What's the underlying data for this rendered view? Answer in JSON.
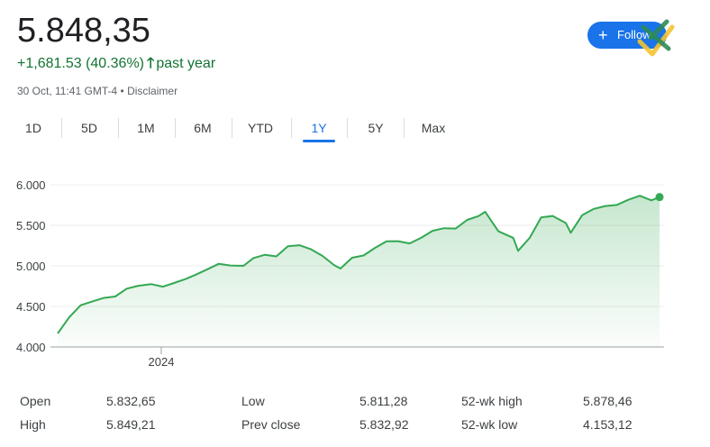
{
  "header": {
    "price": "5.848,35",
    "change": "+1,681.53 (40.36%)",
    "change_period": "past year",
    "timestamp": "30 Oct, 11:41 GMT-4",
    "separator": "•",
    "disclaimer": "Disclaimer",
    "up_color": "#137333"
  },
  "follow_button": {
    "label": "Follow",
    "icon": "plus-icon",
    "color": "#1a73e8"
  },
  "tabs": [
    {
      "label": "1D",
      "active": false
    },
    {
      "label": "5D",
      "active": false
    },
    {
      "label": "1M",
      "active": false
    },
    {
      "label": "6M",
      "active": false
    },
    {
      "label": "YTD",
      "active": false
    },
    {
      "label": "1Y",
      "active": true
    },
    {
      "label": "5Y",
      "active": false
    },
    {
      "label": "Max",
      "active": false
    }
  ],
  "chart_data": {
    "type": "area",
    "title": "",
    "xlabel": "",
    "ylabel": "",
    "x_ticks": [
      "2024"
    ],
    "y_ticks": [
      "4.000",
      "4.500",
      "5.000",
      "5.500",
      "6.000"
    ],
    "y_tick_values": [
      4000,
      4500,
      5000,
      5500,
      6000
    ],
    "ylim": [
      4000,
      6000
    ],
    "x_range": [
      "2023-10-30",
      "2024-10-30"
    ],
    "grid": true,
    "line_color": "#34a853",
    "series": [
      {
        "name": "",
        "x": [
          "2023-10-30",
          "2023-11-06",
          "2023-11-13",
          "2023-11-20",
          "2023-11-27",
          "2023-12-04",
          "2023-12-11",
          "2023-12-18",
          "2023-12-26",
          "2024-01-02",
          "2024-01-08",
          "2024-01-16",
          "2024-01-22",
          "2024-01-29",
          "2024-02-05",
          "2024-02-12",
          "2024-02-20",
          "2024-02-26",
          "2024-03-04",
          "2024-03-11",
          "2024-03-18",
          "2024-03-25",
          "2024-04-01",
          "2024-04-08",
          "2024-04-15",
          "2024-04-19",
          "2024-04-26",
          "2024-05-03",
          "2024-05-10",
          "2024-05-17",
          "2024-05-24",
          "2024-05-31",
          "2024-06-07",
          "2024-06-14",
          "2024-06-21",
          "2024-06-28",
          "2024-07-05",
          "2024-07-12",
          "2024-07-16",
          "2024-07-24",
          "2024-08-02",
          "2024-08-05",
          "2024-08-12",
          "2024-08-19",
          "2024-08-26",
          "2024-09-03",
          "2024-09-06",
          "2024-09-13",
          "2024-09-20",
          "2024-09-27",
          "2024-10-04",
          "2024-10-11",
          "2024-10-18",
          "2024-10-25",
          "2024-10-30"
        ],
        "values": [
          4166,
          4366,
          4514,
          4560,
          4604,
          4622,
          4719,
          4754,
          4774,
          4743,
          4783,
          4840,
          4891,
          4958,
          5026,
          5005,
          5000,
          5096,
          5137,
          5117,
          5241,
          5254,
          5204,
          5123,
          5011,
          4967,
          5100,
          5128,
          5222,
          5303,
          5305,
          5277,
          5346,
          5432,
          5465,
          5460,
          5567,
          5615,
          5667,
          5427,
          5346,
          5186,
          5344,
          5597,
          5616,
          5528,
          5408,
          5626,
          5702,
          5738,
          5751,
          5815,
          5865,
          5808,
          5848
        ]
      }
    ]
  },
  "stats": [
    {
      "label": "Open",
      "value": "5.832,65"
    },
    {
      "label": "High",
      "value": "5.849,21"
    },
    {
      "label": "Low",
      "value": "5.811,28"
    },
    {
      "label": "Prev close",
      "value": "5.832,92"
    },
    {
      "label": "52-wk high",
      "value": "5.878,46"
    },
    {
      "label": "52-wk low",
      "value": "4.153,12"
    }
  ]
}
